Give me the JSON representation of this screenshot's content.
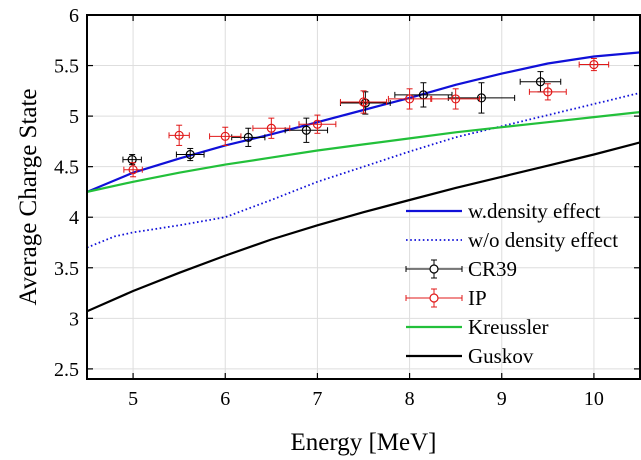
{
  "chart_data": {
    "type": "line",
    "title": "",
    "xlabel": "Energy [MeV]",
    "ylabel": "Average Charge State",
    "xlim": [
      4.5,
      10.5
    ],
    "ylim": [
      2.4,
      6.0
    ],
    "xticks": [
      5,
      6,
      7,
      8,
      9,
      10
    ],
    "xtick_labels": [
      "5",
      "6",
      "7",
      "8",
      "9",
      "10"
    ],
    "yticks": [
      2.5,
      3,
      3.5,
      4,
      4.5,
      5,
      5.5,
      6
    ],
    "ytick_labels": [
      "2.5",
      "3",
      "3.5",
      "4",
      "4.5",
      "5",
      "5.5",
      "6"
    ],
    "grid": true,
    "legend_position": "bottom-right",
    "series": [
      {
        "name": "w.density effect",
        "kind": "line",
        "color": "#1010d8",
        "dash": "solid",
        "x": [
          4.5,
          5.0,
          5.5,
          6.0,
          6.5,
          7.0,
          7.5,
          8.0,
          8.5,
          9.0,
          9.5,
          10.0,
          10.5
        ],
        "y": [
          4.25,
          4.44,
          4.58,
          4.71,
          4.82,
          4.94,
          5.06,
          5.18,
          5.31,
          5.42,
          5.52,
          5.59,
          5.63
        ]
      },
      {
        "name": "w/o density effect",
        "kind": "line",
        "color": "#1010d8",
        "dash": "dotted",
        "x": [
          4.5,
          4.8,
          5.0,
          5.5,
          6.0,
          6.5,
          7.0,
          7.5,
          8.0,
          8.5,
          9.0,
          9.5,
          10.0,
          10.5
        ],
        "y": [
          3.7,
          3.81,
          3.85,
          3.92,
          4.0,
          4.17,
          4.35,
          4.5,
          4.65,
          4.79,
          4.9,
          5.01,
          5.12,
          5.23
        ]
      },
      {
        "name": "CR39",
        "kind": "points",
        "color": "#000000",
        "x": [
          4.99,
          5.62,
          6.25,
          6.88,
          7.52,
          8.15,
          8.78,
          9.42
        ],
        "y": [
          4.57,
          4.62,
          4.79,
          4.86,
          5.13,
          5.21,
          5.18,
          5.34
        ],
        "xerr": [
          0.1,
          0.15,
          0.18,
          0.23,
          0.27,
          0.31,
          0.36,
          0.22
        ],
        "yerr": [
          0.05,
          0.06,
          0.09,
          0.12,
          0.11,
          0.12,
          0.15,
          0.1
        ]
      },
      {
        "name": "IP",
        "kind": "points",
        "color": "#e01818",
        "x": [
          5.0,
          5.5,
          6.0,
          6.5,
          7.0,
          7.5,
          8.0,
          8.5,
          9.5,
          10.0
        ],
        "y": [
          4.47,
          4.81,
          4.8,
          4.88,
          4.92,
          5.14,
          5.17,
          5.17,
          5.24,
          5.51
        ],
        "xerr": [
          0.1,
          0.11,
          0.17,
          0.2,
          0.2,
          0.25,
          0.23,
          0.26,
          0.2,
          0.16
        ],
        "yerr": [
          0.07,
          0.1,
          0.09,
          0.1,
          0.09,
          0.11,
          0.1,
          0.1,
          0.08,
          0.06
        ]
      },
      {
        "name": "Kreussler",
        "kind": "line",
        "color": "#22c03a",
        "dash": "solid",
        "x": [
          4.5,
          5.0,
          5.5,
          6.0,
          6.5,
          7.0,
          7.5,
          8.0,
          8.5,
          9.0,
          9.5,
          10.0,
          10.5
        ],
        "y": [
          4.25,
          4.35,
          4.44,
          4.52,
          4.59,
          4.66,
          4.72,
          4.78,
          4.84,
          4.89,
          4.94,
          4.99,
          5.04
        ]
      },
      {
        "name": "Guskov",
        "kind": "line",
        "color": "#000000",
        "dash": "solid",
        "x": [
          4.5,
          5.0,
          5.5,
          6.0,
          6.5,
          7.0,
          7.5,
          8.0,
          8.5,
          9.0,
          9.5,
          10.0,
          10.5
        ],
        "y": [
          3.07,
          3.27,
          3.45,
          3.62,
          3.78,
          3.92,
          4.05,
          4.17,
          4.29,
          4.4,
          4.51,
          4.62,
          4.74
        ]
      }
    ]
  }
}
